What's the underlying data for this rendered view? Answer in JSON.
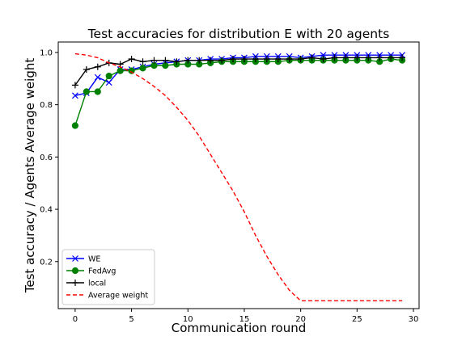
{
  "chart_data": {
    "type": "line",
    "title": "Test accuracies for distribution E with 20 agents",
    "xlabel": "Communication round",
    "ylabel": "Test accuracy / Agents Average weight",
    "xlim": [
      -1.5,
      30.5
    ],
    "ylim": [
      0.02,
      1.04
    ],
    "xticks": [
      0,
      5,
      10,
      15,
      20,
      25,
      30
    ],
    "yticks": [
      0.2,
      0.4,
      0.6,
      0.8,
      1.0
    ],
    "xtick_labels": [
      "0",
      "5",
      "10",
      "15",
      "20",
      "25",
      "30"
    ],
    "ytick_labels": [
      "0.2",
      "0.4",
      "0.6",
      "0.8",
      "1.0"
    ],
    "grid": false,
    "legend_position": "bottom-left",
    "x": [
      0,
      1,
      2,
      3,
      4,
      5,
      6,
      7,
      8,
      9,
      10,
      11,
      12,
      13,
      14,
      15,
      16,
      17,
      18,
      19,
      20,
      21,
      22,
      23,
      24,
      25,
      26,
      27,
      28,
      29
    ],
    "series": [
      {
        "name": "WE",
        "color": "#0000ff",
        "marker": "x",
        "linestyle": "solid",
        "values": [
          0.835,
          0.845,
          0.905,
          0.885,
          0.935,
          0.935,
          0.945,
          0.955,
          0.96,
          0.965,
          0.97,
          0.97,
          0.975,
          0.975,
          0.98,
          0.98,
          0.985,
          0.985,
          0.985,
          0.985,
          0.98,
          0.985,
          0.99,
          0.99,
          0.99,
          0.99,
          0.99,
          0.99,
          0.99,
          0.99
        ]
      },
      {
        "name": "FedAvg",
        "color": "#008000",
        "marker": "o",
        "linestyle": "solid",
        "values": [
          0.72,
          0.85,
          0.85,
          0.91,
          0.93,
          0.93,
          0.94,
          0.95,
          0.95,
          0.955,
          0.955,
          0.955,
          0.96,
          0.965,
          0.965,
          0.965,
          0.965,
          0.965,
          0.965,
          0.97,
          0.97,
          0.97,
          0.97,
          0.97,
          0.97,
          0.97,
          0.97,
          0.965,
          0.975,
          0.97
        ]
      },
      {
        "name": "local",
        "color": "#000000",
        "marker": "+",
        "linestyle": "solid",
        "values": [
          0.875,
          0.935,
          0.945,
          0.96,
          0.955,
          0.975,
          0.965,
          0.97,
          0.97,
          0.965,
          0.97,
          0.97,
          0.97,
          0.97,
          0.975,
          0.975,
          0.975,
          0.975,
          0.975,
          0.975,
          0.975,
          0.98,
          0.975,
          0.98,
          0.98,
          0.98,
          0.98,
          0.98,
          0.98,
          0.98
        ]
      },
      {
        "name": "Average weight",
        "color": "#ff0000",
        "marker": "none",
        "linestyle": "dashed",
        "values": [
          0.995,
          0.99,
          0.98,
          0.96,
          0.945,
          0.925,
          0.9,
          0.87,
          0.835,
          0.79,
          0.74,
          0.68,
          0.61,
          0.54,
          0.47,
          0.39,
          0.3,
          0.22,
          0.15,
          0.09,
          0.05,
          0.05,
          0.05,
          0.05,
          0.05,
          0.05,
          0.05,
          0.05,
          0.05,
          0.05
        ]
      }
    ]
  }
}
